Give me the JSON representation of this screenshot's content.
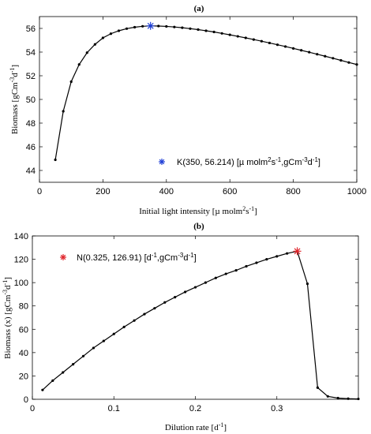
{
  "chart_data": [
    {
      "type": "line",
      "title": "(a)",
      "xlabel": "Initial light intensity [µ molm2s-1]",
      "ylabel": "Biomass [gCm-3d-1]",
      "xlim": [
        0,
        1000
      ],
      "ylim": [
        43,
        57
      ],
      "xticks": [
        0,
        200,
        400,
        600,
        800,
        1000
      ],
      "yticks": [
        44,
        46,
        48,
        50,
        52,
        54,
        56
      ],
      "grid": false,
      "legend_position": "bottom-right",
      "series": [
        {
          "x": [
            50,
            75,
            100,
            125,
            150,
            175,
            200,
            225,
            250,
            275,
            300,
            325,
            350,
            375,
            400,
            425,
            450,
            475,
            500,
            525,
            550,
            575,
            600,
            625,
            650,
            675,
            700,
            725,
            750,
            775,
            800,
            825,
            850,
            875,
            900,
            925,
            950,
            975,
            1000
          ],
          "y": [
            44.9,
            49.0,
            51.5,
            52.95,
            53.95,
            54.65,
            55.2,
            55.55,
            55.8,
            55.98,
            56.1,
            56.18,
            56.214,
            56.2,
            56.17,
            56.12,
            56.06,
            55.98,
            55.9,
            55.8,
            55.7,
            55.58,
            55.46,
            55.33,
            55.2,
            55.06,
            54.92,
            54.77,
            54.62,
            54.47,
            54.31,
            54.15,
            53.99,
            53.82,
            53.65,
            53.48,
            53.3,
            53.12,
            52.95
          ]
        }
      ],
      "highlight": {
        "x": 350,
        "y": 56.214,
        "color": "#1f3fd6",
        "marker": "asterisk",
        "legend_label": "K(350,  56.214) [µ molm2s-1,gCm-3d-1]"
      }
    },
    {
      "type": "line",
      "title": "(b)",
      "xlabel": "Dilution rate [d-1]",
      "ylabel": "Biomass (x) [gCm-3d-1]",
      "xlim": [
        0,
        0.4
      ],
      "ylim": [
        0,
        140
      ],
      "xticks": [
        0,
        0.1,
        0.2,
        0.3
      ],
      "yticks": [
        0,
        20,
        40,
        60,
        80,
        100,
        120,
        140
      ],
      "grid": false,
      "legend_position": "top-left",
      "series": [
        {
          "x": [
            0.0125,
            0.025,
            0.0375,
            0.05,
            0.0625,
            0.075,
            0.0875,
            0.1,
            0.1125,
            0.125,
            0.1375,
            0.15,
            0.1625,
            0.175,
            0.1875,
            0.2,
            0.2125,
            0.225,
            0.2375,
            0.25,
            0.2625,
            0.275,
            0.2875,
            0.3,
            0.3125,
            0.325,
            0.3375,
            0.35,
            0.3625,
            0.375,
            0.3875,
            0.4
          ],
          "y": [
            8,
            16,
            23,
            30,
            37,
            44,
            50,
            56,
            62,
            67.5,
            73,
            78,
            83,
            87.5,
            92,
            96,
            100,
            104,
            107.5,
            110.5,
            114,
            117,
            120,
            122.5,
            125,
            126.91,
            99,
            10,
            2.5,
            1,
            0.5,
            0.3
          ]
        }
      ],
      "highlight": {
        "x": 0.325,
        "y": 126.91,
        "color": "#e0262c",
        "marker": "asterisk",
        "legend_label": "N(0.325,  126.91) [d-1,gCm-3d-1]"
      }
    }
  ]
}
